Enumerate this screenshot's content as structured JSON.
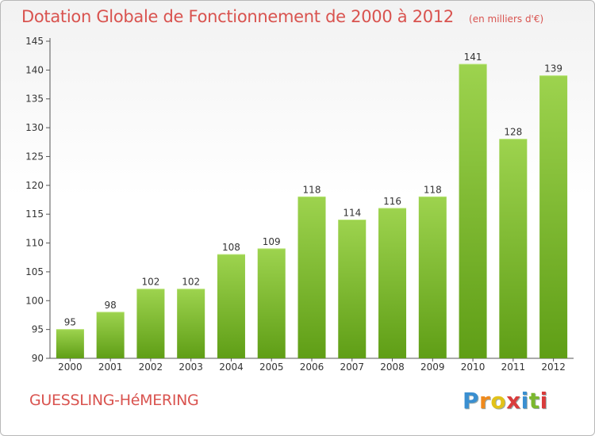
{
  "title": "Dotation Globale de Fonctionnement de 2000 à 2012",
  "unit": "(en milliers d'€)",
  "commune": "GUESSLING-HéMERING",
  "logo": {
    "letters": [
      "P",
      "r",
      "o",
      "x",
      "i",
      "t",
      "i"
    ],
    "colors": [
      "#3a8fd1",
      "#f08a1c",
      "#e2c21a",
      "#d93c3c",
      "#3a8fd1",
      "#7bb82e",
      "#d93c3c"
    ]
  },
  "colors": {
    "title": "#d9534f",
    "bar_top": "#9dd34e",
    "bar_bottom": "#5f9e16",
    "axis": "#555555",
    "grid": "#cccccc"
  },
  "chart_data": {
    "type": "bar",
    "title": "Dotation Globale de Fonctionnement de 2000 à 2012",
    "categories": [
      "2000",
      "2001",
      "2002",
      "2003",
      "2004",
      "2005",
      "2006",
      "2007",
      "2008",
      "2009",
      "2010",
      "2011",
      "2012"
    ],
    "values": [
      95,
      98,
      102,
      102,
      108,
      109,
      118,
      114,
      116,
      118,
      141,
      128,
      139
    ],
    "ylim": [
      90,
      145
    ],
    "yticks": [
      90,
      95,
      100,
      105,
      110,
      115,
      120,
      125,
      130,
      135,
      140,
      145
    ],
    "grid": false,
    "data_labels": true
  }
}
